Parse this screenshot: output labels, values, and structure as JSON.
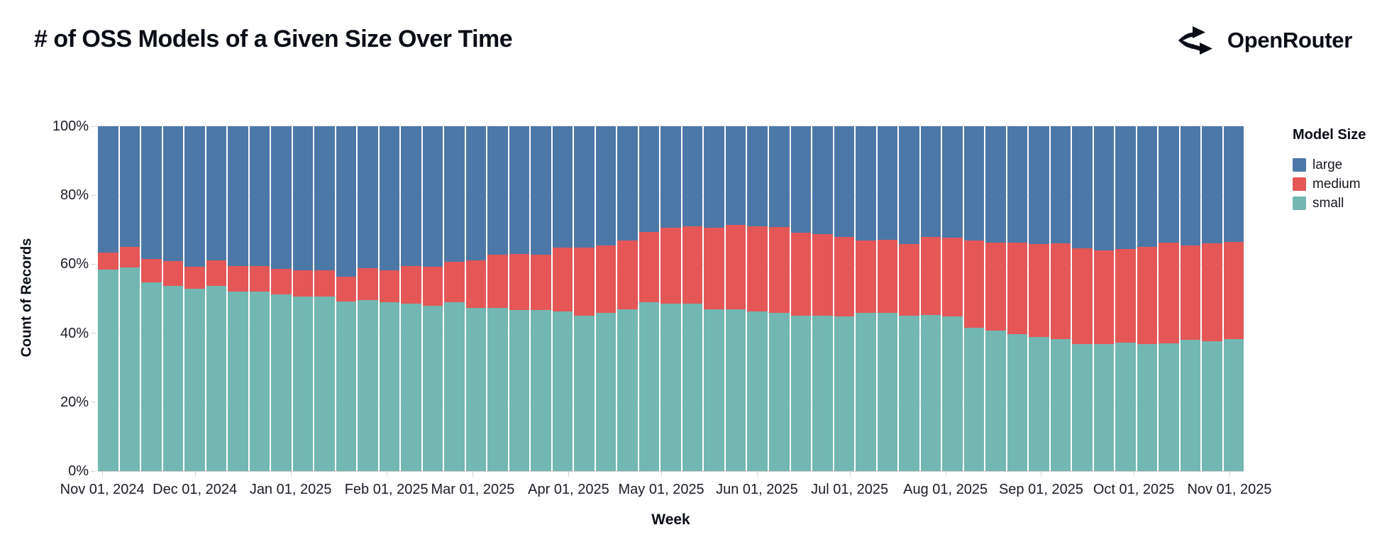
{
  "header": {
    "title": "# of OSS Models of a Given Size Over Time",
    "brand": "OpenRouter"
  },
  "chart_data": {
    "type": "bar",
    "stacked": true,
    "normalized": true,
    "title": "# of OSS Models of a Given Size Over Time",
    "xlabel": "Week",
    "ylabel": "Count of Records",
    "legend_title": "Model Size",
    "legend_position": "right",
    "grid": true,
    "ylim": [
      "0%",
      "100%"
    ],
    "y_ticks": [
      "0%",
      "20%",
      "40%",
      "60%",
      "80%",
      "100%"
    ],
    "x_ticks": [
      "Nov 01, 2024",
      "Dec 01, 2024",
      "Jan 01, 2025",
      "Feb 01, 2025",
      "Mar 01, 2025",
      "Apr 01, 2025",
      "May 01, 2025",
      "Jun 01, 2025",
      "Jul 01, 2025",
      "Aug 01, 2025",
      "Sep 01, 2025",
      "Oct 01, 2025",
      "Nov 01, 2025"
    ],
    "unit": "percent of weekly records",
    "weeks": [
      "2024-10-27",
      "2024-11-03",
      "2024-11-10",
      "2024-11-17",
      "2024-11-24",
      "2024-12-01",
      "2024-12-08",
      "2024-12-15",
      "2024-12-22",
      "2024-12-29",
      "2025-01-05",
      "2025-01-12",
      "2025-01-19",
      "2025-01-26",
      "2025-02-02",
      "2025-02-09",
      "2025-02-16",
      "2025-02-23",
      "2025-03-02",
      "2025-03-09",
      "2025-03-16",
      "2025-03-23",
      "2025-03-30",
      "2025-04-06",
      "2025-04-13",
      "2025-04-20",
      "2025-04-27",
      "2025-05-04",
      "2025-05-11",
      "2025-05-18",
      "2025-05-25",
      "2025-06-01",
      "2025-06-08",
      "2025-06-15",
      "2025-06-22",
      "2025-06-29",
      "2025-07-06",
      "2025-07-13",
      "2025-07-20",
      "2025-07-27",
      "2025-08-03",
      "2025-08-10",
      "2025-08-17",
      "2025-08-24",
      "2025-08-31",
      "2025-09-07",
      "2025-09-14",
      "2025-09-21",
      "2025-09-28",
      "2025-10-05",
      "2025-10-12",
      "2025-10-19",
      "2025-10-26"
    ],
    "series": [
      {
        "name": "large",
        "color": "#4c78a8",
        "values": [
          36.7,
          35.0,
          38.4,
          39.1,
          40.7,
          38.8,
          40.5,
          40.5,
          41.3,
          41.7,
          41.7,
          43.6,
          41.1,
          41.7,
          40.5,
          40.8,
          39.4,
          38.8,
          37.3,
          37.1,
          37.3,
          35.2,
          35.2,
          34.5,
          33.2,
          30.6,
          29.5,
          29.1,
          29.4,
          28.6,
          29.1,
          29.2,
          30.8,
          31.2,
          32.1,
          33.2,
          33.0,
          34.2,
          32.1,
          32.3,
          33.1,
          33.7,
          33.8,
          34.1,
          34.0,
          35.3,
          36.0,
          35.5,
          35.0,
          33.8,
          34.6,
          34.0,
          33.6
        ]
      },
      {
        "name": "medium",
        "color": "#e45756",
        "values": [
          4.8,
          6.0,
          6.9,
          7.1,
          6.4,
          7.6,
          7.5,
          7.4,
          7.4,
          7.7,
          7.7,
          7.2,
          9.3,
          9.3,
          10.9,
          11.3,
          11.7,
          13.8,
          15.4,
          16.2,
          15.9,
          18.5,
          19.7,
          19.7,
          19.8,
          20.5,
          21.9,
          22.3,
          23.6,
          24.5,
          24.6,
          25.0,
          24.1,
          23.7,
          23.0,
          21.0,
          21.1,
          20.7,
          22.6,
          22.8,
          25.4,
          25.6,
          26.5,
          27.1,
          27.7,
          27.8,
          27.2,
          27.2,
          28.1,
          29.2,
          27.4,
          28.4,
          28.1
        ]
      },
      {
        "name": "small",
        "color": "#72b7b2",
        "values": [
          58.5,
          59.0,
          54.7,
          53.8,
          52.9,
          53.6,
          52.0,
          52.1,
          51.3,
          50.6,
          50.6,
          49.2,
          49.6,
          49.0,
          48.6,
          47.9,
          48.9,
          47.4,
          47.3,
          46.7,
          46.8,
          46.3,
          45.1,
          45.8,
          47.0,
          48.9,
          48.6,
          48.6,
          47.0,
          46.9,
          46.3,
          45.8,
          45.1,
          45.1,
          44.9,
          45.8,
          45.9,
          45.1,
          45.3,
          44.9,
          41.5,
          40.7,
          39.7,
          38.8,
          38.3,
          36.9,
          36.8,
          37.3,
          36.9,
          37.0,
          38.0,
          37.6,
          38.3
        ]
      }
    ]
  }
}
